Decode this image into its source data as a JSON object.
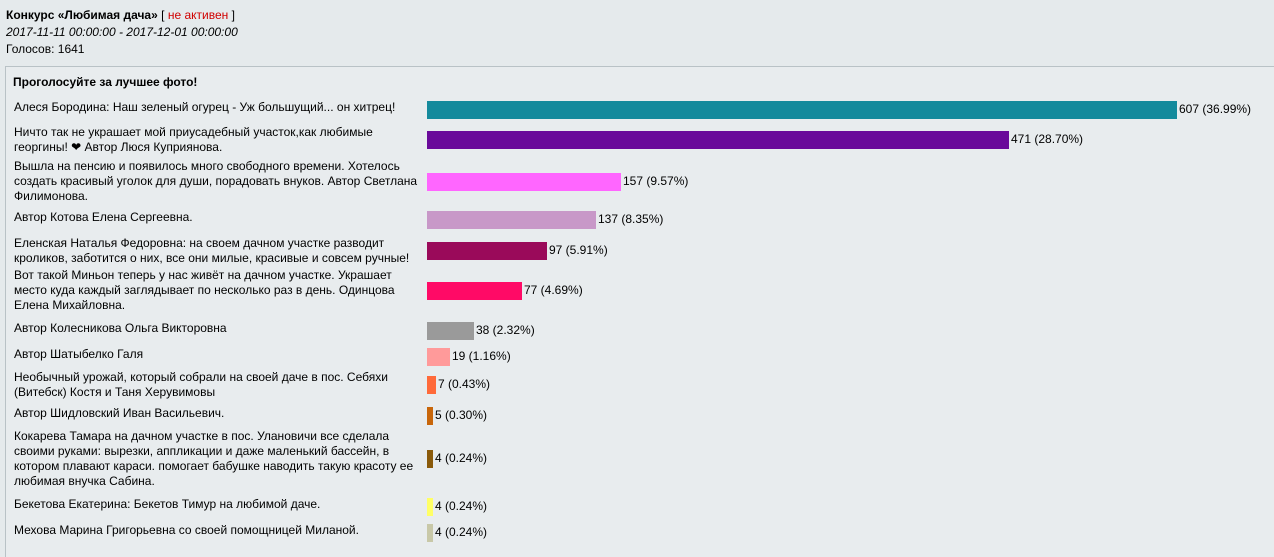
{
  "header": {
    "title": "Конкурс «Любимая дача»",
    "status_open": "[",
    "status": "не активен",
    "status_close": "]",
    "dates": "2017-11-11 00:00:00 - 2017-12-01 00:00:00",
    "votes": "Голосов: 1641"
  },
  "chart_data": {
    "type": "bar",
    "orientation": "horizontal",
    "title": "Проголосуйте за лучшее фото!",
    "total_votes": 1641,
    "categories": [
      "Алеся Бородина: Наш зеленый огурец - Уж большущий... он хитрец!",
      "Ничто так не украшает мой приусадебный участок,как любимые георгины! ❤ Автор Люся Куприянова.",
      "Вышла на пенсию и появилось много свободного времени. Хотелось создать красивый уголок для души, порадовать внуков. Автор Светлана Филимонова.",
      "Автор Котова Елена Сергеевна.",
      "Еленская Наталья Федоровна: на своем дачном участке разводит кроликов, заботится о них, все они милые, красивые и совсем ручные!",
      "Вот такой Миньон теперь у нас живёт на дачном участке. Украшает место куда каждый заглядывает по несколько раз в день. Одинцова Елена Михайловна.",
      "Автор Колесникова Ольга Викторовна",
      "Автор Шатыбелко Галя",
      "Необычный урожай, который собрали на своей даче в пос. Себяхи (Витебск) Костя и Таня Херувимовы",
      "Автор Шидловский Иван Васильевич.",
      "Кокарева Тамара на дачном участке в пос. Улановичи все сделала своими руками: вырезки, аппликации и даже маленький бассейн, в котором плавают караси. помогает бабушке наводить такую красоту ее любимая внучка Сабина.",
      "Бекетова Екатерина: Бекетов Тимур на любимой даче.",
      "Мехова Марина Григорьевна со своей помощницей Миланой."
    ],
    "values": [
      607,
      471,
      157,
      137,
      97,
      77,
      38,
      19,
      7,
      5,
      4,
      4,
      4
    ],
    "value_labels": [
      "607 (36.99%)",
      "471 (28.70%)",
      "157 (9.57%)",
      "137 (8.35%)",
      "97 (5.91%)",
      "77 (4.69%)",
      "38 (2.32%)",
      "19 (1.16%)",
      "7 (0.43%)",
      "5 (0.30%)",
      "4 (0.24%)",
      "4 (0.24%)",
      "4 (0.24%)"
    ],
    "colors": [
      "#148a9c",
      "#6a0a9a",
      "#ff66ff",
      "#c898c8",
      "#9a0a5a",
      "#ff0a66",
      "#9a9a9a",
      "#ff9a9a",
      "#ff6a3a",
      "#c8660a",
      "#8a5a0a",
      "#ffff66",
      "#c8c8a8"
    ]
  }
}
